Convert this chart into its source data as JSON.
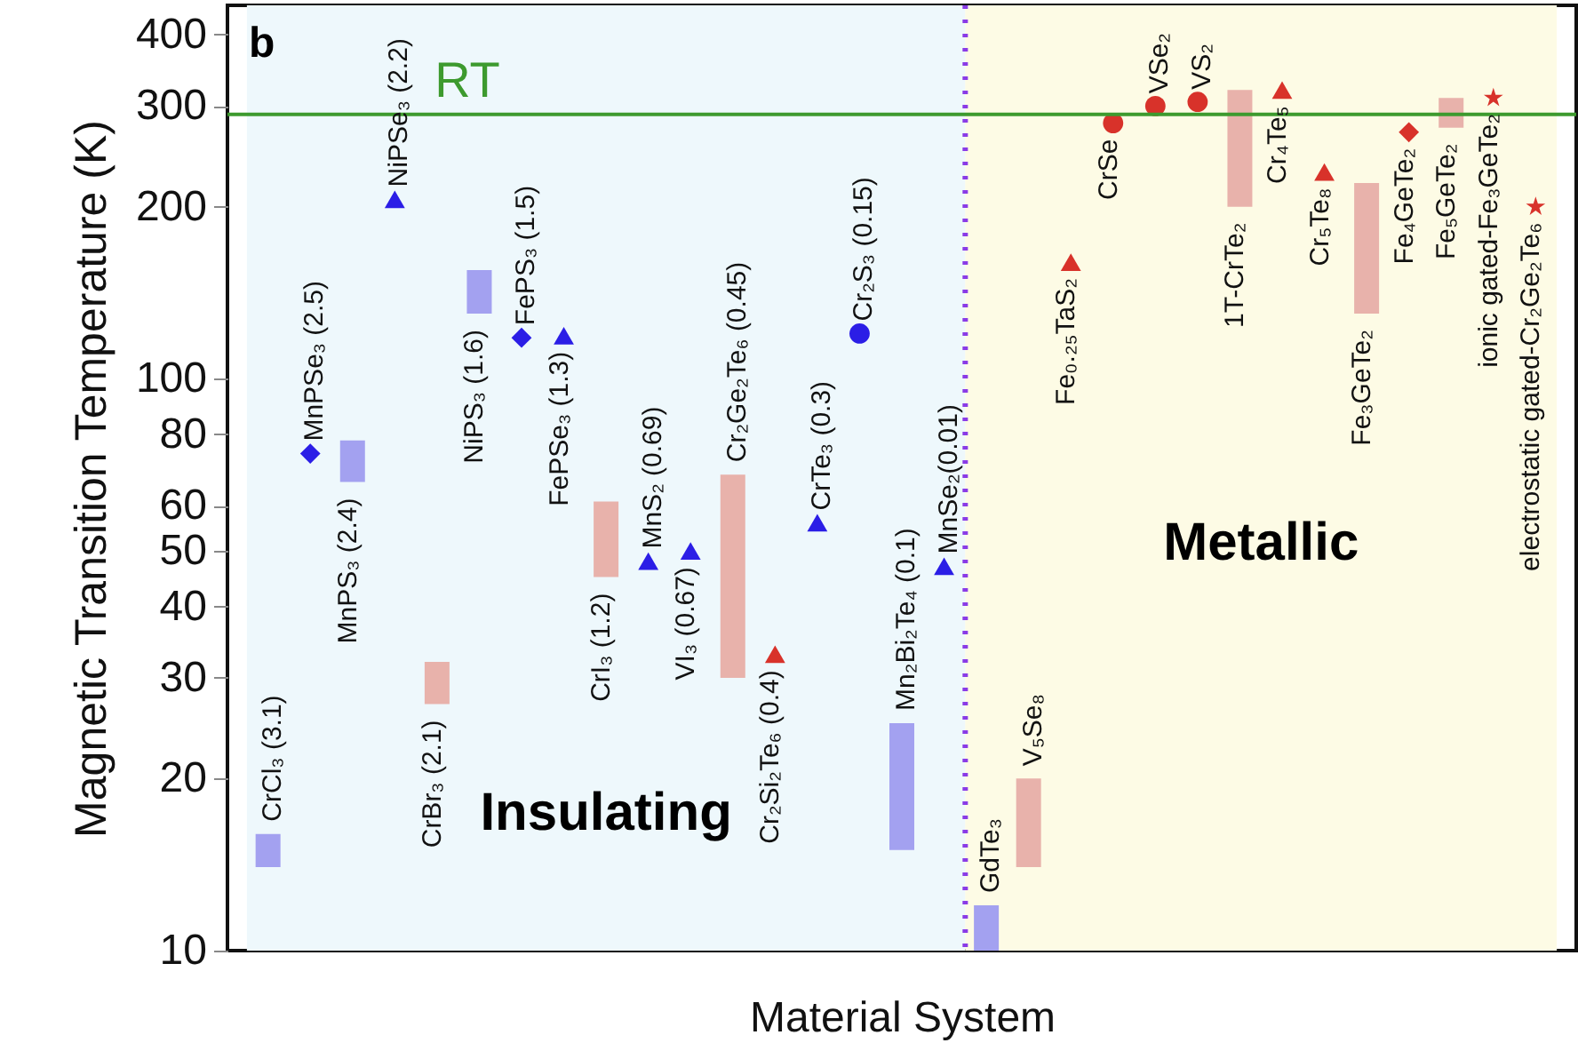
{
  "chart_data": {
    "type": "bar",
    "xlabel": "Material System",
    "ylabel": "Magnetic Transition Temperature (K)",
    "annotations": [
      "b"
    ],
    "categories": [
      "CrCl₃ (3.1)",
      "MnPSe₃ (2.5)",
      "MnPS₃ (2.4)",
      "NiPSe₃ (2.2)",
      "CrBr₃ (2.1)",
      "NiPS₃ (1.6)",
      "FePS₃ (1.5)",
      "FePSe₃ (1.3)",
      "CrI₃ (1.2)",
      "MnS₂ (0.69)",
      "VI₃ (0.67)",
      "Cr₂Ge₂Te₆ (0.45)",
      "Cr₂Si₂Te₆ (0.4)",
      "CrTe₃ (0.3)",
      "Cr₂S₃ (0.15)",
      "Mn₂Bi₂Te₄ (0.1)",
      "MnSe₂(0.01)",
      "GdTe₃",
      "V₅Se₈",
      "Fe₀.₂₅TaS₂",
      "CrSe",
      "VSe₂",
      "VS₂",
      "1T-CrTe₂",
      "Cr₄Te₅",
      "Cr₅Te₈",
      "Fe₃GeTe₂",
      "Fe₄GeTe₂",
      "Fe₅GeTe₂",
      "ionic gated-Fe₃GeTe₂",
      "electrostatic gated-Cr₂Ge₂Te₆"
    ],
    "series": [
      {
        "type": "bar",
        "color": "#a3a1f0",
        "base": [
          14,
          null,
          66,
          null,
          null,
          130,
          null,
          null,
          null,
          null,
          null,
          null,
          null,
          null,
          null,
          15,
          null,
          10,
          null,
          null,
          null,
          null,
          null,
          null,
          null,
          null,
          null,
          null,
          null,
          null,
          null
        ],
        "values": [
          2,
          null,
          12,
          null,
          null,
          25,
          null,
          null,
          null,
          null,
          null,
          null,
          null,
          null,
          null,
          10,
          null,
          2,
          null,
          null,
          null,
          null,
          null,
          null,
          null,
          null,
          null,
          null,
          null,
          null,
          null
        ]
      },
      {
        "type": "bar",
        "color": "#e8b2ab",
        "base": [
          null,
          null,
          null,
          null,
          27,
          null,
          null,
          null,
          45,
          null,
          null,
          30,
          null,
          null,
          null,
          null,
          null,
          null,
          14,
          null,
          null,
          null,
          null,
          200,
          null,
          null,
          130,
          null,
          275,
          null,
          null
        ],
        "values": [
          null,
          null,
          null,
          null,
          5,
          null,
          null,
          null,
          16,
          null,
          null,
          38,
          null,
          null,
          null,
          null,
          null,
          null,
          6,
          null,
          null,
          null,
          null,
          120,
          null,
          null,
          90,
          null,
          35,
          null,
          null
        ]
      },
      {
        "type": "scatter",
        "marker": "diamond",
        "color": "#2b1ee6",
        "values": [
          null,
          74,
          null,
          null,
          null,
          null,
          118,
          null,
          null,
          null,
          null,
          null,
          null,
          null,
          null,
          null,
          null,
          null,
          null,
          null,
          null,
          null,
          null,
          null,
          null,
          null,
          null,
          null,
          null,
          null,
          null
        ]
      },
      {
        "type": "scatter",
        "marker": "triangle",
        "color": "#2b1ee6",
        "values": [
          null,
          null,
          null,
          206,
          null,
          null,
          null,
          119,
          null,
          48,
          50,
          null,
          null,
          56,
          null,
          null,
          47,
          null,
          null,
          null,
          null,
          null,
          null,
          null,
          null,
          null,
          null,
          null,
          null,
          null,
          null
        ]
      },
      {
        "type": "scatter",
        "marker": "circle",
        "color": "#2b1ee6",
        "values": [
          null,
          null,
          null,
          null,
          null,
          null,
          null,
          null,
          null,
          null,
          null,
          null,
          null,
          null,
          120,
          null,
          null,
          null,
          null,
          null,
          null,
          null,
          null,
          null,
          null,
          null,
          null,
          null,
          null,
          null,
          null
        ]
      },
      {
        "type": "scatter",
        "marker": "triangle",
        "color": "#d8322a",
        "values": [
          null,
          null,
          null,
          null,
          null,
          null,
          null,
          null,
          null,
          null,
          null,
          null,
          33,
          null,
          null,
          null,
          null,
          null,
          null,
          160,
          null,
          null,
          null,
          null,
          320,
          230,
          null,
          null,
          null,
          null,
          null
        ]
      },
      {
        "type": "scatter",
        "marker": "circle",
        "color": "#d8322a",
        "values": [
          null,
          null,
          null,
          null,
          null,
          null,
          null,
          null,
          null,
          null,
          null,
          null,
          null,
          null,
          null,
          null,
          null,
          null,
          null,
          null,
          280,
          300,
          305,
          null,
          null,
          null,
          null,
          null,
          null,
          null,
          null
        ]
      },
      {
        "type": "scatter",
        "marker": "diamond",
        "color": "#d8322a",
        "values": [
          null,
          null,
          null,
          null,
          null,
          null,
          null,
          null,
          null,
          null,
          null,
          null,
          null,
          null,
          null,
          null,
          null,
          null,
          null,
          null,
          null,
          null,
          null,
          null,
          null,
          null,
          null,
          270,
          null,
          null,
          null
        ]
      },
      {
        "type": "scatter",
        "marker": "star",
        "color": "#d8322a",
        "values": [
          null,
          null,
          null,
          null,
          null,
          null,
          null,
          null,
          null,
          null,
          null,
          null,
          null,
          null,
          null,
          null,
          null,
          null,
          null,
          null,
          null,
          null,
          null,
          null,
          null,
          null,
          null,
          null,
          null,
          310,
          200
        ]
      }
    ],
    "ylim": [
      10,
      450
    ],
    "yticks": [
      10,
      20,
      30,
      40,
      50,
      60,
      80,
      100,
      200,
      300,
      400
    ],
    "log": true,
    "ref_lines": [
      {
        "axis": "y",
        "value": 290,
        "label": "RT",
        "color": "#3d9a2e"
      },
      {
        "axis": "x",
        "value": "GdTe₃",
        "color": "#8a3be6",
        "line_style": "dotted"
      }
    ],
    "bands": [
      {
        "axis": "x",
        "from": "CrCl₃ (3.1)",
        "to": "MnSe₂(0.01)",
        "label": "Insulating",
        "color": "#eef8fc"
      },
      {
        "axis": "x",
        "from": "GdTe₃",
        "to": "electrostatic gated-Cr₂Ge₂Te₆",
        "label": "Metallic",
        "color": "#fdfbe5"
      }
    ]
  }
}
